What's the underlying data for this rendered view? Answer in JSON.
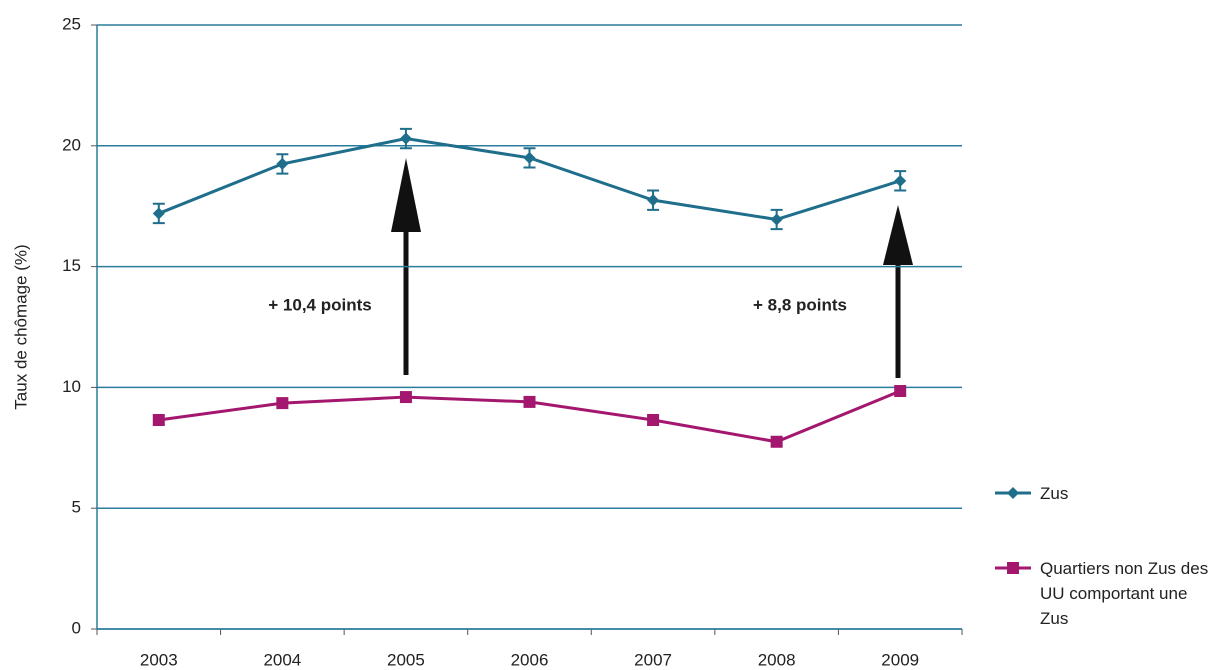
{
  "chart_data": {
    "type": "line",
    "y_label": "Taux de chômage (%)",
    "categories": [
      "2003",
      "2004",
      "2005",
      "2006",
      "2007",
      "2008",
      "2009"
    ],
    "series": [
      {
        "name": "Zus",
        "color": "#1f6e8c",
        "marker": "diamond",
        "values": [
          17.2,
          19.25,
          20.3,
          19.5,
          17.75,
          16.95,
          18.55
        ],
        "errors": [
          0.4,
          0.4,
          0.4,
          0.4,
          0.4,
          0.4,
          0.4
        ]
      },
      {
        "name": "Quartiers non Zus des UU comportant une Zus",
        "color": "#a3176e",
        "marker": "square",
        "values": [
          8.65,
          9.35,
          9.6,
          9.4,
          8.65,
          7.75,
          9.85
        ]
      }
    ],
    "annotations": [
      "+ 10,4 points",
      "+ 8,8 points"
    ],
    "ylim": [
      0,
      25
    ],
    "yticks": [
      0,
      5,
      10,
      15,
      20,
      25
    ],
    "grid": true,
    "legend": "right"
  }
}
